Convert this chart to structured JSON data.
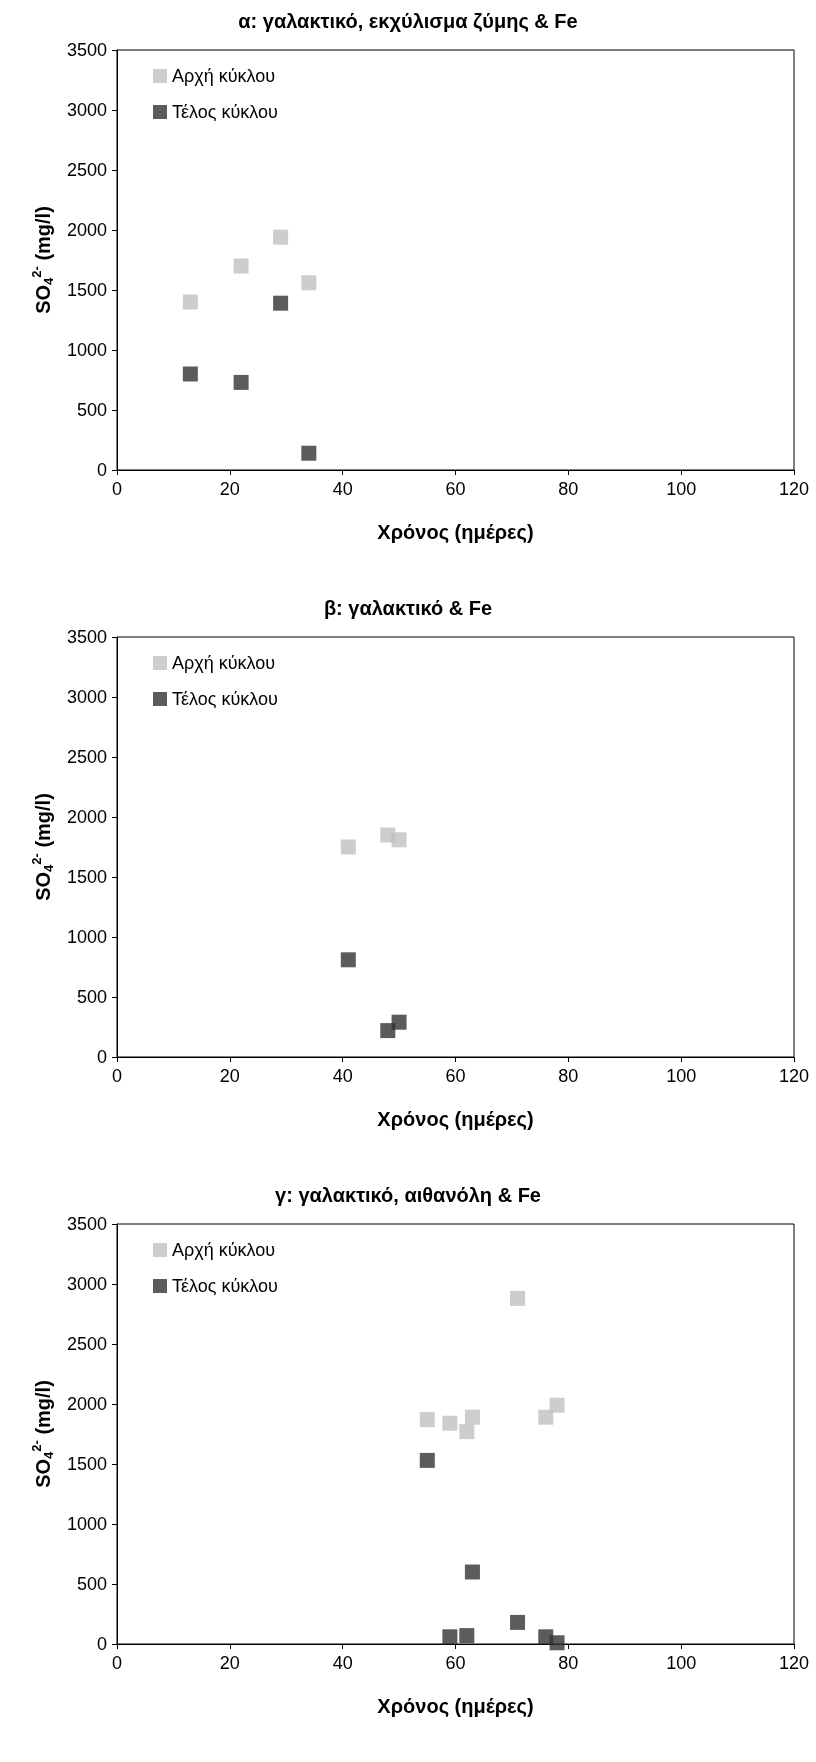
{
  "chart_data": [
    {
      "type": "scatter",
      "title": "α: γαλακτικό, εκχύλισμα ζύμης & Fe",
      "xlabel": "Χρόνος (ημέρες)",
      "ylabel": "SO$_{4}$$^{2-}$ (mg/l)",
      "xlim": [
        0,
        120
      ],
      "xticks": [
        0,
        20,
        40,
        60,
        80,
        100,
        120
      ],
      "ylim": [
        0,
        3500
      ],
      "yticks": [
        0,
        500,
        1000,
        1500,
        2000,
        2500,
        3000,
        3500
      ],
      "grid": false,
      "legend": "top left",
      "marker": "square",
      "series": [
        {
          "name": "Αρχή κύκλου",
          "color": "#c0c0c0",
          "x": [
            13,
            22,
            29,
            34
          ],
          "values": [
            1400,
            1700,
            1940,
            1560
          ]
        },
        {
          "name": "Τέλος κύκλου",
          "color": "#333333",
          "x": [
            13,
            22,
            29,
            34
          ],
          "values": [
            800,
            730,
            1390,
            140
          ]
        }
      ]
    },
    {
      "type": "scatter",
      "title": "β: γαλακτικό & Fe",
      "xlabel": "Χρόνος (ημέρες)",
      "ylabel": "SO$_{4}$$^{2-}$ (mg/l)",
      "xlim": [
        0,
        120
      ],
      "xticks": [
        0,
        20,
        40,
        60,
        80,
        100,
        120
      ],
      "ylim": [
        0,
        3500
      ],
      "yticks": [
        0,
        500,
        1000,
        1500,
        2000,
        2500,
        3000,
        3500
      ],
      "grid": false,
      "legend": "top left",
      "marker": "square",
      "series": [
        {
          "name": "Αρχή κύκλου",
          "color": "#c0c0c0",
          "x": [
            41,
            48,
            50
          ],
          "values": [
            1750,
            1850,
            1810
          ]
        },
        {
          "name": "Τέλος κύκλου",
          "color": "#333333",
          "x": [
            41,
            48,
            50
          ],
          "values": [
            810,
            220,
            290
          ]
        }
      ]
    },
    {
      "type": "scatter",
      "title": "γ: γαλακτικό, αιθανόλη & Fe",
      "xlabel": "Χρόνος (ημέρες)",
      "ylabel": "SO$_{4}$$^{2-}$ (mg/l)",
      "xlim": [
        0,
        120
      ],
      "xticks": [
        0,
        20,
        40,
        60,
        80,
        100,
        120
      ],
      "ylim": [
        0,
        3500
      ],
      "yticks": [
        0,
        500,
        1000,
        1500,
        2000,
        2500,
        3000,
        3500
      ],
      "grid": false,
      "legend": "top left",
      "marker": "square",
      "series": [
        {
          "name": "Αρχή κύκλου",
          "color": "#c0c0c0",
          "x": [
            55,
            59,
            62,
            63,
            71,
            76,
            78
          ],
          "values": [
            1870,
            1840,
            1770,
            1890,
            2880,
            1890,
            1990
          ]
        },
        {
          "name": "Τέλος κύκλου",
          "color": "#333333",
          "x": [
            55,
            59,
            62,
            63,
            71,
            76,
            78
          ],
          "values": [
            1530,
            60,
            70,
            600,
            180,
            60,
            10
          ]
        }
      ]
    }
  ]
}
